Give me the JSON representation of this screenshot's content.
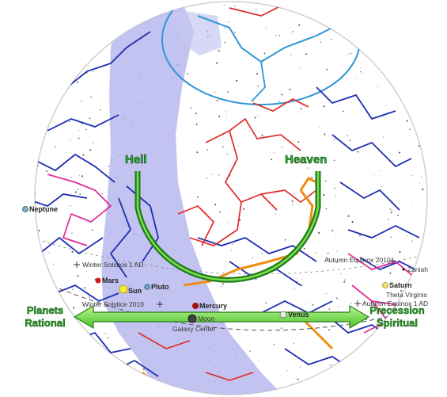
{
  "labels": {
    "hell": "Hell",
    "heaven": "Heaven",
    "left_line1": "Planets",
    "left_line2": "Rational",
    "right_line1": "Precession",
    "right_line2": "Spiritual"
  },
  "bodies": {
    "neptune": "Neptune",
    "mars": "Mars",
    "sun": "Sun",
    "pluto": "Pluto",
    "mercury": "Mercury",
    "moon": "Moon",
    "venus": "Venus",
    "saturn": "Saturn"
  },
  "markers": {
    "winter_solstice_1ad": "Winter Solstice 1 AD",
    "winter_solstice_2010": "Winter Solstice 2010",
    "autumn_equinox_2010": "Autumn Equinox 2010",
    "autumn_equinox_1ad": "Autumn Equinox 1 AD",
    "galaxy_center": "Galaxy Center",
    "zaniah": "Zaniah",
    "theta_virginis": "Theta Virginis"
  },
  "colors": {
    "milky_way": "#b9b9ee",
    "constellation_blue": "#1c2fb0",
    "constellation_red": "#e02a2a",
    "constellation_pink": "#e0309a",
    "constellation_orange": "#f08c10",
    "polar_cyan": "#2f96d6",
    "arc_green": "#1f7a1f",
    "arrow_green": "#7be04a"
  }
}
